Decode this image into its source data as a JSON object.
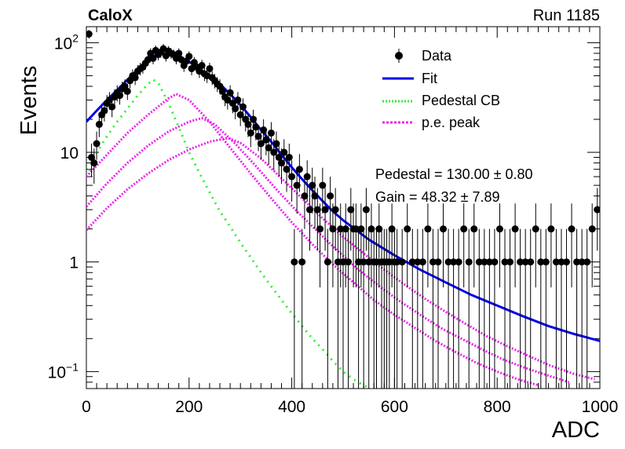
{
  "chart_data": {
    "type": "scatter",
    "header": {
      "experiment": "CaloX",
      "run": "Run 1185"
    },
    "xlabel": "ADC",
    "ylabel": "Events",
    "xlim": [
      0,
      1000
    ],
    "ylim": [
      0.07,
      140
    ],
    "yscale": "log",
    "x_ticks": [
      0,
      200,
      400,
      600,
      800,
      1000
    ],
    "y_ticks": [
      {
        "value": 0.1,
        "base": "10",
        "exp": "−1"
      },
      {
        "value": 1,
        "base": "1",
        "exp": ""
      },
      {
        "value": 10,
        "base": "10",
        "exp": ""
      },
      {
        "value": 100,
        "base": "10",
        "exp": "2"
      }
    ],
    "legend_position": "top-right",
    "legend": [
      {
        "label": "Data",
        "style": "marker"
      },
      {
        "label": "Fit",
        "style": "solid",
        "color": "#0000ee"
      },
      {
        "label": "Pedestal CB",
        "style": "dotted",
        "color": "#33ee33"
      },
      {
        "label": "p.e. peak",
        "style": "dotted",
        "color": "#ee22ee"
      }
    ],
    "fit_results": [
      {
        "text": "Pedestal = 130.00 ± 0.80"
      },
      {
        "text": "Gain = 48.32 ± 7.89"
      }
    ],
    "data_points": [
      [
        5,
        120
      ],
      [
        10,
        9
      ],
      [
        15,
        8
      ],
      [
        20,
        12
      ],
      [
        25,
        18
      ],
      [
        30,
        22
      ],
      [
        35,
        24
      ],
      [
        40,
        28
      ],
      [
        45,
        30
      ],
      [
        50,
        26
      ],
      [
        55,
        32
      ],
      [
        60,
        35
      ],
      [
        65,
        33
      ],
      [
        70,
        38
      ],
      [
        75,
        40
      ],
      [
        80,
        36
      ],
      [
        85,
        45
      ],
      [
        90,
        50
      ],
      [
        95,
        48
      ],
      [
        100,
        55
      ],
      [
        105,
        58
      ],
      [
        110,
        60
      ],
      [
        115,
        65
      ],
      [
        120,
        70
      ],
      [
        125,
        80
      ],
      [
        130,
        72
      ],
      [
        135,
        85
      ],
      [
        140,
        78
      ],
      [
        145,
        82
      ],
      [
        150,
        88
      ],
      [
        155,
        76
      ],
      [
        160,
        84
      ],
      [
        165,
        80
      ],
      [
        170,
        78
      ],
      [
        175,
        72
      ],
      [
        180,
        80
      ],
      [
        185,
        70
      ],
      [
        190,
        62
      ],
      [
        195,
        68
      ],
      [
        200,
        75
      ],
      [
        205,
        58
      ],
      [
        210,
        66
      ],
      [
        215,
        60
      ],
      [
        220,
        55
      ],
      [
        225,
        62
      ],
      [
        230,
        52
      ],
      [
        235,
        50
      ],
      [
        240,
        58
      ],
      [
        245,
        48
      ],
      [
        250,
        45
      ],
      [
        255,
        42
      ],
      [
        260,
        40
      ],
      [
        265,
        36
      ],
      [
        270,
        32
      ],
      [
        275,
        30
      ],
      [
        280,
        35
      ],
      [
        285,
        28
      ],
      [
        290,
        25
      ],
      [
        295,
        30
      ],
      [
        300,
        22
      ],
      [
        305,
        26
      ],
      [
        310,
        20
      ],
      [
        315,
        18
      ],
      [
        320,
        15
      ],
      [
        325,
        20
      ],
      [
        330,
        17
      ],
      [
        335,
        14
      ],
      [
        340,
        12
      ],
      [
        345,
        16
      ],
      [
        350,
        13
      ],
      [
        355,
        11
      ],
      [
        360,
        15
      ],
      [
        365,
        10
      ],
      [
        370,
        12
      ],
      [
        375,
        9
      ],
      [
        380,
        8
      ],
      [
        385,
        10
      ],
      [
        390,
        7
      ],
      [
        395,
        9
      ],
      [
        400,
        6
      ],
      [
        405,
        1
      ],
      [
        410,
        5
      ],
      [
        415,
        7
      ],
      [
        420,
        1
      ],
      [
        425,
        4
      ],
      [
        430,
        6
      ],
      [
        435,
        3
      ],
      [
        440,
        5
      ],
      [
        445,
        4
      ],
      [
        450,
        3
      ],
      [
        455,
        2
      ],
      [
        460,
        5
      ],
      [
        465,
        3
      ],
      [
        470,
        1
      ],
      [
        475,
        4
      ],
      [
        480,
        2
      ],
      [
        485,
        3
      ],
      [
        490,
        1
      ],
      [
        495,
        2
      ],
      [
        500,
        1
      ],
      [
        505,
        2
      ],
      [
        510,
        1
      ],
      [
        515,
        3
      ],
      [
        520,
        2
      ],
      [
        525,
        2
      ],
      [
        530,
        1
      ],
      [
        535,
        2
      ],
      [
        540,
        1
      ],
      [
        545,
        3
      ],
      [
        550,
        1
      ],
      [
        555,
        2
      ],
      [
        560,
        1
      ],
      [
        565,
        1
      ],
      [
        570,
        2
      ],
      [
        575,
        1
      ],
      [
        580,
        1
      ],
      [
        585,
        1
      ],
      [
        590,
        1
      ],
      [
        595,
        2
      ],
      [
        600,
        1
      ],
      [
        605,
        1
      ],
      [
        615,
        1
      ],
      [
        625,
        2
      ],
      [
        635,
        1
      ],
      [
        645,
        1
      ],
      [
        655,
        1
      ],
      [
        665,
        2
      ],
      [
        675,
        1
      ],
      [
        685,
        1
      ],
      [
        695,
        2
      ],
      [
        705,
        1
      ],
      [
        715,
        1
      ],
      [
        725,
        1
      ],
      [
        735,
        2
      ],
      [
        745,
        1
      ],
      [
        755,
        2
      ],
      [
        765,
        1
      ],
      [
        775,
        1
      ],
      [
        785,
        1
      ],
      [
        795,
        1
      ],
      [
        805,
        2
      ],
      [
        815,
        1
      ],
      [
        825,
        1
      ],
      [
        835,
        2
      ],
      [
        845,
        1
      ],
      [
        855,
        1
      ],
      [
        865,
        1
      ],
      [
        875,
        2
      ],
      [
        885,
        1
      ],
      [
        895,
        1
      ],
      [
        905,
        2
      ],
      [
        915,
        1
      ],
      [
        925,
        1
      ],
      [
        935,
        1
      ],
      [
        945,
        2
      ],
      [
        955,
        1
      ],
      [
        965,
        1
      ],
      [
        975,
        1
      ],
      [
        985,
        2
      ],
      [
        995,
        3
      ]
    ],
    "fit_curve": [
      [
        0,
        19
      ],
      [
        20,
        24
      ],
      [
        40,
        30
      ],
      [
        60,
        37
      ],
      [
        80,
        46
      ],
      [
        100,
        57
      ],
      [
        120,
        70
      ],
      [
        140,
        80
      ],
      [
        160,
        78
      ],
      [
        180,
        74
      ],
      [
        200,
        67
      ],
      [
        220,
        58
      ],
      [
        240,
        50
      ],
      [
        260,
        42
      ],
      [
        280,
        34
      ],
      [
        300,
        27
      ],
      [
        320,
        21
      ],
      [
        340,
        16
      ],
      [
        360,
        12.5
      ],
      [
        380,
        9.5
      ],
      [
        400,
        7.3
      ],
      [
        420,
        5.7
      ],
      [
        440,
        4.5
      ],
      [
        460,
        3.6
      ],
      [
        480,
        2.9
      ],
      [
        500,
        2.4
      ],
      [
        550,
        1.6
      ],
      [
        600,
        1.15
      ],
      [
        650,
        0.85
      ],
      [
        700,
        0.65
      ],
      [
        750,
        0.5
      ],
      [
        800,
        0.4
      ],
      [
        850,
        0.32
      ],
      [
        900,
        0.26
      ],
      [
        950,
        0.22
      ],
      [
        1000,
        0.19
      ]
    ],
    "pedestal_cb": [
      [
        0,
        6
      ],
      [
        20,
        10
      ],
      [
        40,
        14
      ],
      [
        60,
        19
      ],
      [
        80,
        25
      ],
      [
        100,
        33
      ],
      [
        120,
        42
      ],
      [
        130,
        46
      ],
      [
        140,
        43
      ],
      [
        160,
        28
      ],
      [
        180,
        17
      ],
      [
        200,
        10
      ],
      [
        220,
        6.5
      ],
      [
        240,
        4.3
      ],
      [
        260,
        2.9
      ],
      [
        280,
        2.1
      ],
      [
        300,
        1.5
      ],
      [
        320,
        1.1
      ],
      [
        340,
        0.8
      ],
      [
        360,
        0.6
      ],
      [
        380,
        0.45
      ],
      [
        400,
        0.34
      ],
      [
        420,
        0.26
      ],
      [
        440,
        0.2
      ],
      [
        460,
        0.16
      ],
      [
        480,
        0.125
      ],
      [
        500,
        0.1
      ],
      [
        520,
        0.085
      ],
      [
        540,
        0.075
      ],
      [
        560,
        0.068
      ]
    ],
    "pe_peaks": [
      [
        [
          0,
          6
        ],
        [
          40,
          9.5
        ],
        [
          80,
          15
        ],
        [
          120,
          22
        ],
        [
          160,
          31
        ],
        [
          175,
          34
        ],
        [
          200,
          30
        ],
        [
          240,
          19
        ],
        [
          280,
          11
        ],
        [
          320,
          6.4
        ],
        [
          360,
          3.8
        ],
        [
          400,
          2.3
        ],
        [
          440,
          1.45
        ],
        [
          480,
          0.95
        ],
        [
          520,
          0.65
        ],
        [
          560,
          0.45
        ],
        [
          600,
          0.33
        ],
        [
          640,
          0.25
        ],
        [
          680,
          0.19
        ],
        [
          720,
          0.15
        ],
        [
          760,
          0.12
        ],
        [
          800,
          0.1
        ],
        [
          840,
          0.085
        ],
        [
          880,
          0.075
        ]
      ],
      [
        [
          0,
          3.2
        ],
        [
          40,
          5.2
        ],
        [
          80,
          8
        ],
        [
          120,
          11.5
        ],
        [
          160,
          15.5
        ],
        [
          200,
          19
        ],
        [
          225,
          20.5
        ],
        [
          250,
          18
        ],
        [
          290,
          12
        ],
        [
          330,
          7.5
        ],
        [
          370,
          4.6
        ],
        [
          410,
          2.9
        ],
        [
          450,
          1.9
        ],
        [
          490,
          1.25
        ],
        [
          530,
          0.85
        ],
        [
          570,
          0.6
        ],
        [
          610,
          0.44
        ],
        [
          650,
          0.33
        ],
        [
          690,
          0.25
        ],
        [
          730,
          0.2
        ],
        [
          770,
          0.16
        ],
        [
          810,
          0.13
        ],
        [
          850,
          0.11
        ],
        [
          890,
          0.095
        ],
        [
          940,
          0.08
        ]
      ],
      [
        [
          0,
          1.95
        ],
        [
          40,
          3.1
        ],
        [
          80,
          4.6
        ],
        [
          120,
          6.4
        ],
        [
          160,
          8.5
        ],
        [
          200,
          10.6
        ],
        [
          240,
          12.5
        ],
        [
          275,
          13.5
        ],
        [
          300,
          12.2
        ],
        [
          340,
          8.8
        ],
        [
          380,
          5.8
        ],
        [
          420,
          3.8
        ],
        [
          460,
          2.5
        ],
        [
          500,
          1.7
        ],
        [
          540,
          1.2
        ],
        [
          580,
          0.85
        ],
        [
          620,
          0.62
        ],
        [
          660,
          0.46
        ],
        [
          700,
          0.35
        ],
        [
          740,
          0.27
        ],
        [
          780,
          0.21
        ],
        [
          820,
          0.17
        ],
        [
          860,
          0.14
        ],
        [
          900,
          0.115
        ],
        [
          950,
          0.095
        ],
        [
          990,
          0.085
        ]
      ]
    ]
  }
}
